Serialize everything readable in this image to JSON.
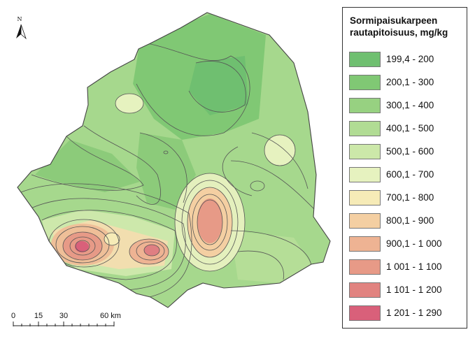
{
  "north_arrow": {
    "letter": "N",
    "icon": "north-arrow-icon"
  },
  "scale_bar": {
    "ticks": [
      "0",
      "15",
      "30"
    ],
    "end_label": "60 km"
  },
  "legend": {
    "title_line1": "Sormipaisukarpeen",
    "title_line2": "rautapitoisuus, mg/kg",
    "classes": [
      {
        "label": "199,4 - 200",
        "color": "#6fbf70"
      },
      {
        "label": "200,1 - 300",
        "color": "#80c874"
      },
      {
        "label": "300,1 - 400",
        "color": "#97d181"
      },
      {
        "label": "400,1 - 500",
        "color": "#b1dc94"
      },
      {
        "label": "500,1 - 600",
        "color": "#cce8a9"
      },
      {
        "label": "600,1 - 700",
        "color": "#e6f2bf"
      },
      {
        "label": "700,1 - 800",
        "color": "#f6ebb7"
      },
      {
        "label": "800,1 - 900",
        "color": "#f4cfa2"
      },
      {
        "label": "900,1 - 1 000",
        "color": "#eeb393"
      },
      {
        "label": "1 001 - 1 100",
        "color": "#e79a87"
      },
      {
        "label": "1 101 - 1 200",
        "color": "#e18380"
      },
      {
        "label": "1 201 - 1 290",
        "color": "#d9607a"
      }
    ]
  }
}
